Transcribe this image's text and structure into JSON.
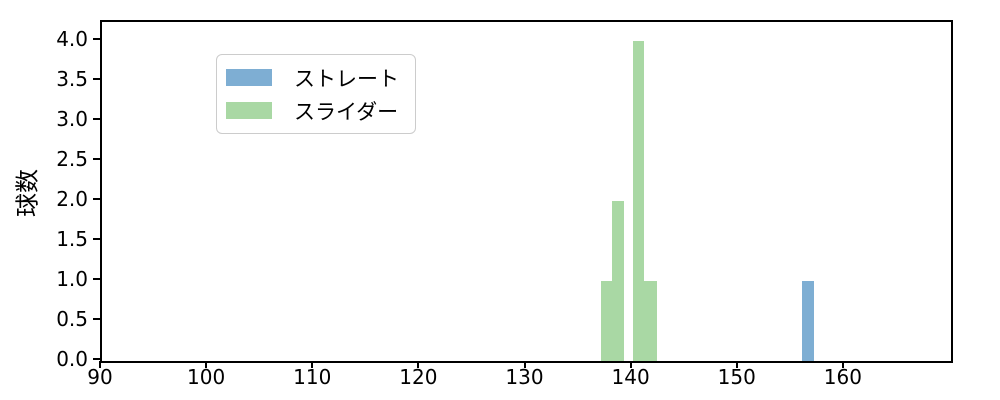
{
  "figure": {
    "background_color": "#ffffff",
    "axis_color": "#000000"
  },
  "chart_data": {
    "type": "bar",
    "subtype": "histogram",
    "title": "",
    "xlabel": "",
    "ylabel": "球数",
    "xlim": [
      90,
      170
    ],
    "ylim": [
      0,
      4.2375
    ],
    "grid": false,
    "xticks": [
      90,
      100,
      110,
      120,
      130,
      140,
      150,
      160
    ],
    "ytick_labels": [
      "0.0",
      "0.5",
      "1.0",
      "1.5",
      "2.0",
      "2.5",
      "3.0",
      "3.5",
      "4.0"
    ],
    "ytick_values": [
      0,
      0.5,
      1.0,
      1.5,
      2.0,
      2.5,
      3.0,
      3.5,
      4.0
    ],
    "legend_position": "upper left",
    "series": [
      {
        "name": "ストレート",
        "color": "#7EAED3",
        "bins": [
          {
            "from": 156.0,
            "to": 157.1,
            "count": 1
          }
        ]
      },
      {
        "name": "スライダー",
        "color": "#A9D8A4",
        "bins": [
          {
            "from": 137.0,
            "to": 138.1,
            "count": 1
          },
          {
            "from": 138.1,
            "to": 139.2,
            "count": 2
          },
          {
            "from": 139.2,
            "to": 140.0,
            "count": 0
          },
          {
            "from": 140.0,
            "to": 141.1,
            "count": 4
          },
          {
            "from": 141.1,
            "to": 142.3,
            "count": 1
          }
        ]
      }
    ]
  }
}
